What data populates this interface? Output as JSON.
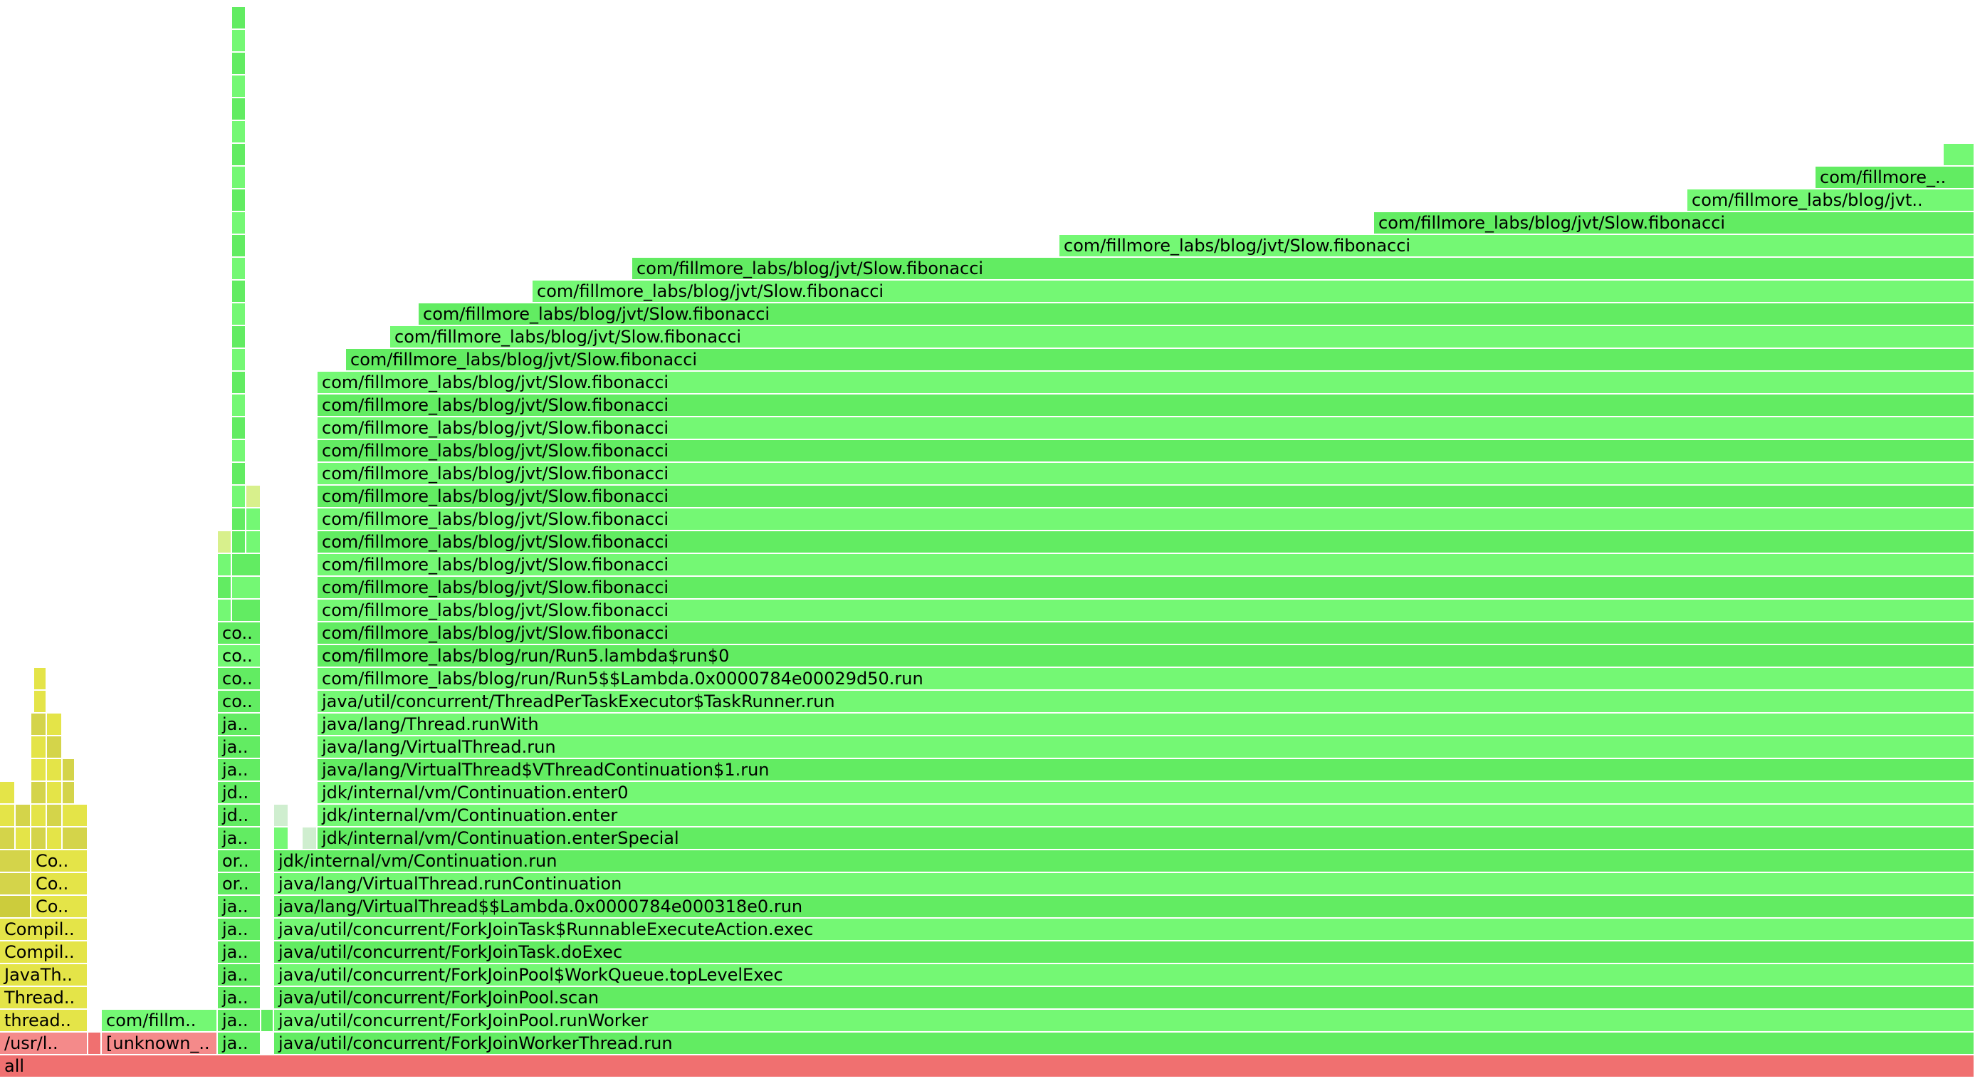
{
  "title": "Flame graph",
  "colors": {
    "red": "#f07070",
    "red_light": "#f48a8a",
    "green": "#62ec62",
    "green_light": "#74f874",
    "green_pale": "#cfeecf",
    "green_yellow": "#d8f08c",
    "yellow": "#e4e448",
    "yellow_dark": "#d4d44a",
    "yellow_olive": "#cccc3c"
  },
  "frames": [
    {
      "level": 0,
      "start": 0,
      "end": 2774,
      "text": "all",
      "color": "red"
    },
    {
      "level": 1,
      "start": 0,
      "end": 124,
      "text": "/usr/l..",
      "color": "red_light"
    },
    {
      "level": 1,
      "start": 124,
      "end": 143,
      "text": "",
      "color": "red"
    },
    {
      "level": 1,
      "start": 143,
      "end": 306,
      "text": "[unknown_..",
      "color": "red_light"
    },
    {
      "level": 1,
      "start": 306,
      "end": 367,
      "text": "ja..",
      "color": "green"
    },
    {
      "level": 1,
      "start": 385,
      "end": 2774,
      "text": "java/util/concurrent/ForkJoinWorkerThread.run",
      "color": "green"
    },
    {
      "level": 2,
      "start": 0,
      "end": 124,
      "text": "thread..",
      "color": "yellow"
    },
    {
      "level": 2,
      "start": 143,
      "end": 306,
      "text": "com/fillm..",
      "color": "green_light"
    },
    {
      "level": 2,
      "start": 306,
      "end": 367,
      "text": "ja..",
      "color": "green"
    },
    {
      "level": 2,
      "start": 367,
      "end": 385,
      "text": "",
      "color": "green"
    },
    {
      "level": 2,
      "start": 385,
      "end": 2774,
      "text": "java/util/concurrent/ForkJoinPool.runWorker",
      "color": "green_light"
    },
    {
      "level": 3,
      "start": 0,
      "end": 124,
      "text": "Thread..",
      "color": "yellow"
    },
    {
      "level": 3,
      "start": 306,
      "end": 367,
      "text": "ja..",
      "color": "green"
    },
    {
      "level": 3,
      "start": 385,
      "end": 2774,
      "text": "java/util/concurrent/ForkJoinPool.scan",
      "color": "green"
    },
    {
      "level": 4,
      "start": 0,
      "end": 124,
      "text": "JavaTh..",
      "color": "yellow"
    },
    {
      "level": 4,
      "start": 306,
      "end": 367,
      "text": "ja..",
      "color": "green"
    },
    {
      "level": 4,
      "start": 385,
      "end": 2774,
      "text": "java/util/concurrent/ForkJoinPool$WorkQueue.topLevelExec",
      "color": "green_light"
    },
    {
      "level": 5,
      "start": 0,
      "end": 124,
      "text": "Compil..",
      "color": "yellow"
    },
    {
      "level": 5,
      "start": 306,
      "end": 367,
      "text": "ja..",
      "color": "green"
    },
    {
      "level": 5,
      "start": 385,
      "end": 2774,
      "text": "java/util/concurrent/ForkJoinTask.doExec",
      "color": "green"
    },
    {
      "level": 6,
      "start": 0,
      "end": 124,
      "text": "Compil..",
      "color": "yellow"
    },
    {
      "level": 6,
      "start": 306,
      "end": 367,
      "text": "ja..",
      "color": "green"
    },
    {
      "level": 6,
      "start": 385,
      "end": 2774,
      "text": "java/util/concurrent/ForkJoinTask$RunnableExecuteAction.exec",
      "color": "green_light"
    },
    {
      "level": 7,
      "start": 0,
      "end": 44,
      "text": "",
      "color": "yellow_olive"
    },
    {
      "level": 7,
      "start": 44,
      "end": 124,
      "text": "Co..",
      "color": "yellow"
    },
    {
      "level": 7,
      "start": 306,
      "end": 367,
      "text": "ja..",
      "color": "green"
    },
    {
      "level": 7,
      "start": 385,
      "end": 2774,
      "text": "java/lang/VirtualThread$$Lambda.0x0000784e000318e0.run",
      "color": "green"
    },
    {
      "level": 8,
      "start": 0,
      "end": 44,
      "text": "",
      "color": "yellow_dark"
    },
    {
      "level": 8,
      "start": 44,
      "end": 124,
      "text": "Co..",
      "color": "yellow"
    },
    {
      "level": 8,
      "start": 306,
      "end": 367,
      "text": "or..",
      "color": "green"
    },
    {
      "level": 8,
      "start": 385,
      "end": 2774,
      "text": "java/lang/VirtualThread.runContinuation",
      "color": "green_light"
    },
    {
      "level": 9,
      "start": 0,
      "end": 44,
      "text": "",
      "color": "yellow_dark"
    },
    {
      "level": 9,
      "start": 44,
      "end": 124,
      "text": "Co..",
      "color": "yellow"
    },
    {
      "level": 9,
      "start": 306,
      "end": 367,
      "text": "or..",
      "color": "green"
    },
    {
      "level": 9,
      "start": 385,
      "end": 2774,
      "text": "jdk/internal/vm/Continuation.run",
      "color": "green"
    },
    {
      "level": 10,
      "start": 0,
      "end": 22,
      "text": "",
      "color": "yellow_dark"
    },
    {
      "level": 10,
      "start": 22,
      "end": 44,
      "text": "",
      "color": "yellow"
    },
    {
      "level": 10,
      "start": 44,
      "end": 66,
      "text": "",
      "color": "yellow_dark"
    },
    {
      "level": 10,
      "start": 66,
      "end": 88,
      "text": "",
      "color": "yellow"
    },
    {
      "level": 10,
      "start": 88,
      "end": 124,
      "text": "",
      "color": "yellow_dark"
    },
    {
      "level": 10,
      "start": 306,
      "end": 367,
      "text": "ja..",
      "color": "green"
    },
    {
      "level": 10,
      "start": 385,
      "end": 406,
      "text": "",
      "color": "green_light"
    },
    {
      "level": 10,
      "start": 425,
      "end": 446,
      "text": "",
      "color": "green_pale"
    },
    {
      "level": 10,
      "start": 446,
      "end": 2774,
      "text": "jdk/internal/vm/Continuation.enterSpecial",
      "color": "green"
    },
    {
      "level": 11,
      "start": 0,
      "end": 22,
      "text": "",
      "color": "yellow"
    },
    {
      "level": 11,
      "start": 22,
      "end": 44,
      "text": "",
      "color": "yellow_dark"
    },
    {
      "level": 11,
      "start": 44,
      "end": 66,
      "text": "",
      "color": "yellow"
    },
    {
      "level": 11,
      "start": 66,
      "end": 88,
      "text": "",
      "color": "yellow_dark"
    },
    {
      "level": 11,
      "start": 88,
      "end": 124,
      "text": "",
      "color": "yellow"
    },
    {
      "level": 11,
      "start": 306,
      "end": 367,
      "text": "jd..",
      "color": "green"
    },
    {
      "level": 11,
      "start": 385,
      "end": 406,
      "text": "",
      "color": "green_pale"
    },
    {
      "level": 11,
      "start": 446,
      "end": 2774,
      "text": "jdk/internal/vm/Continuation.enter",
      "color": "green_light"
    },
    {
      "level": 12,
      "start": 0,
      "end": 22,
      "text": "",
      "color": "yellow"
    },
    {
      "level": 12,
      "start": 44,
      "end": 66,
      "text": "",
      "color": "yellow_dark"
    },
    {
      "level": 12,
      "start": 66,
      "end": 88,
      "text": "",
      "color": "yellow"
    },
    {
      "level": 12,
      "start": 88,
      "end": 106,
      "text": "",
      "color": "yellow_dark"
    },
    {
      "level": 12,
      "start": 306,
      "end": 367,
      "text": "jd..",
      "color": "green"
    },
    {
      "level": 12,
      "start": 446,
      "end": 2774,
      "text": "jdk/internal/vm/Continuation.enter0",
      "color": "green_light"
    },
    {
      "level": 13,
      "start": 44,
      "end": 66,
      "text": "",
      "color": "yellow"
    },
    {
      "level": 13,
      "start": 66,
      "end": 88,
      "text": "",
      "color": "yellow"
    },
    {
      "level": 13,
      "start": 88,
      "end": 106,
      "text": "",
      "color": "yellow_dark"
    },
    {
      "level": 13,
      "start": 306,
      "end": 367,
      "text": "ja..",
      "color": "green"
    },
    {
      "level": 13,
      "start": 446,
      "end": 2774,
      "text": "java/lang/VirtualThread$VThreadContinuation$1.run",
      "color": "green"
    },
    {
      "level": 14,
      "start": 44,
      "end": 66,
      "text": "",
      "color": "yellow"
    },
    {
      "level": 14,
      "start": 66,
      "end": 88,
      "text": "",
      "color": "yellow_dark"
    },
    {
      "level": 14,
      "start": 306,
      "end": 367,
      "text": "ja..",
      "color": "green"
    },
    {
      "level": 14,
      "start": 446,
      "end": 2774,
      "text": "java/lang/VirtualThread.run",
      "color": "green_light"
    },
    {
      "level": 15,
      "start": 44,
      "end": 66,
      "text": "",
      "color": "yellow_dark"
    },
    {
      "level": 15,
      "start": 66,
      "end": 88,
      "text": "",
      "color": "yellow"
    },
    {
      "level": 15,
      "start": 306,
      "end": 367,
      "text": "ja..",
      "color": "green"
    },
    {
      "level": 15,
      "start": 446,
      "end": 2774,
      "text": "java/lang/Thread.runWith",
      "color": "green_light"
    },
    {
      "level": 16,
      "start": 48,
      "end": 66,
      "text": "",
      "color": "yellow"
    },
    {
      "level": 16,
      "start": 306,
      "end": 367,
      "text": "co..",
      "color": "green"
    },
    {
      "level": 16,
      "start": 446,
      "end": 2774,
      "text": "java/util/concurrent/ThreadPerTaskExecutor$TaskRunner.run",
      "color": "green_light"
    },
    {
      "level": 17,
      "start": 48,
      "end": 66,
      "text": "",
      "color": "yellow"
    },
    {
      "level": 17,
      "start": 306,
      "end": 367,
      "text": "co..",
      "color": "green"
    },
    {
      "level": 17,
      "start": 446,
      "end": 2774,
      "text": "com/fillmore_labs/blog/run/Run5$$Lambda.0x0000784e00029d50.run",
      "color": "green_light"
    },
    {
      "level": 18,
      "start": 306,
      "end": 367,
      "text": "co..",
      "color": "green_light"
    },
    {
      "level": 18,
      "start": 446,
      "end": 2774,
      "text": "com/fillmore_labs/blog/run/Run5.lambda$run$0",
      "color": "green"
    },
    {
      "level": 19,
      "start": 306,
      "end": 367,
      "text": "co..",
      "color": "green"
    },
    {
      "level": 19,
      "start": 446,
      "end": 2774,
      "text": "com/fillmore_labs/blog/jvt/Slow.fibonacci",
      "color": "green"
    },
    {
      "level": 20,
      "start": 306,
      "end": 326,
      "text": "",
      "color": "green_light"
    },
    {
      "level": 20,
      "start": 326,
      "end": 367,
      "text": "",
      "color": "green"
    },
    {
      "level": 20,
      "start": 446,
      "end": 2774,
      "text": "com/fillmore_labs/blog/jvt/Slow.fibonacci",
      "color": "green_light"
    },
    {
      "level": 21,
      "start": 306,
      "end": 326,
      "text": "",
      "color": "green"
    },
    {
      "level": 21,
      "start": 326,
      "end": 367,
      "text": "",
      "color": "green_light"
    },
    {
      "level": 21,
      "start": 446,
      "end": 2774,
      "text": "com/fillmore_labs/blog/jvt/Slow.fibonacci",
      "color": "green"
    },
    {
      "level": 22,
      "start": 306,
      "end": 326,
      "text": "",
      "color": "green_light"
    },
    {
      "level": 22,
      "start": 326,
      "end": 367,
      "text": "",
      "color": "green"
    },
    {
      "level": 22,
      "start": 446,
      "end": 2774,
      "text": "com/fillmore_labs/blog/jvt/Slow.fibonacci",
      "color": "green_light"
    },
    {
      "level": 23,
      "start": 306,
      "end": 326,
      "text": "",
      "color": "green_yellow"
    },
    {
      "level": 23,
      "start": 326,
      "end": 346,
      "text": "",
      "color": "green"
    },
    {
      "level": 23,
      "start": 346,
      "end": 367,
      "text": "",
      "color": "green_light"
    },
    {
      "level": 23,
      "start": 446,
      "end": 2774,
      "text": "com/fillmore_labs/blog/jvt/Slow.fibonacci",
      "color": "green"
    },
    {
      "level": 24,
      "start": 326,
      "end": 346,
      "text": "",
      "color": "green"
    },
    {
      "level": 24,
      "start": 346,
      "end": 367,
      "text": "",
      "color": "green_light"
    },
    {
      "level": 24,
      "start": 446,
      "end": 2774,
      "text": "com/fillmore_labs/blog/jvt/Slow.fibonacci",
      "color": "green_light"
    },
    {
      "level": 25,
      "start": 326,
      "end": 346,
      "text": "",
      "color": "green_light"
    },
    {
      "level": 25,
      "start": 346,
      "end": 367,
      "text": "",
      "color": "green_yellow"
    },
    {
      "level": 25,
      "start": 446,
      "end": 2774,
      "text": "com/fillmore_labs/blog/jvt/Slow.fibonacci",
      "color": "green"
    },
    {
      "level": 26,
      "start": 326,
      "end": 346,
      "text": "",
      "color": "green"
    },
    {
      "level": 26,
      "start": 446,
      "end": 2774,
      "text": "com/fillmore_labs/blog/jvt/Slow.fibonacci",
      "color": "green_light"
    },
    {
      "level": 27,
      "start": 326,
      "end": 346,
      "text": "",
      "color": "green_light"
    },
    {
      "level": 27,
      "start": 446,
      "end": 2774,
      "text": "com/fillmore_labs/blog/jvt/Slow.fibonacci",
      "color": "green"
    },
    {
      "level": 28,
      "start": 326,
      "end": 346,
      "text": "",
      "color": "green"
    },
    {
      "level": 28,
      "start": 446,
      "end": 2774,
      "text": "com/fillmore_labs/blog/jvt/Slow.fibonacci",
      "color": "green_light"
    },
    {
      "level": 29,
      "start": 326,
      "end": 346,
      "text": "",
      "color": "green_light"
    },
    {
      "level": 29,
      "start": 446,
      "end": 2774,
      "text": "com/fillmore_labs/blog/jvt/Slow.fibonacci",
      "color": "green"
    },
    {
      "level": 30,
      "start": 326,
      "end": 346,
      "text": "",
      "color": "green"
    },
    {
      "level": 30,
      "start": 446,
      "end": 2774,
      "text": "com/fillmore_labs/blog/jvt/Slow.fibonacci",
      "color": "green_light"
    },
    {
      "level": 31,
      "start": 326,
      "end": 346,
      "text": "",
      "color": "green_light"
    },
    {
      "level": 31,
      "start": 486,
      "end": 2774,
      "text": "com/fillmore_labs/blog/jvt/Slow.fibonacci",
      "color": "green"
    },
    {
      "level": 32,
      "start": 326,
      "end": 346,
      "text": "",
      "color": "green"
    },
    {
      "level": 32,
      "start": 548,
      "end": 2774,
      "text": "com/fillmore_labs/blog/jvt/Slow.fibonacci",
      "color": "green_light"
    },
    {
      "level": 33,
      "start": 326,
      "end": 346,
      "text": "",
      "color": "green_light"
    },
    {
      "level": 33,
      "start": 588,
      "end": 2774,
      "text": "com/fillmore_labs/blog/jvt/Slow.fibonacci",
      "color": "green"
    },
    {
      "level": 34,
      "start": 326,
      "end": 346,
      "text": "",
      "color": "green"
    },
    {
      "level": 34,
      "start": 748,
      "end": 2774,
      "text": "com/fillmore_labs/blog/jvt/Slow.fibonacci",
      "color": "green_light"
    },
    {
      "level": 35,
      "start": 326,
      "end": 346,
      "text": "",
      "color": "green_light"
    },
    {
      "level": 35,
      "start": 888,
      "end": 2774,
      "text": "com/fillmore_labs/blog/jvt/Slow.fibonacci",
      "color": "green"
    },
    {
      "level": 36,
      "start": 326,
      "end": 346,
      "text": "",
      "color": "green"
    },
    {
      "level": 36,
      "start": 1488,
      "end": 2774,
      "text": "com/fillmore_labs/blog/jvt/Slow.fibonacci",
      "color": "green_light"
    },
    {
      "level": 37,
      "start": 326,
      "end": 346,
      "text": "",
      "color": "green_light"
    },
    {
      "level": 37,
      "start": 1930,
      "end": 2774,
      "text": "com/fillmore_labs/blog/jvt/Slow.fibonacci",
      "color": "green"
    },
    {
      "level": 38,
      "start": 326,
      "end": 346,
      "text": "",
      "color": "green"
    },
    {
      "level": 38,
      "start": 2370,
      "end": 2774,
      "text": "com/fillmore_labs/blog/jvt..",
      "color": "green_light"
    },
    {
      "level": 39,
      "start": 326,
      "end": 346,
      "text": "",
      "color": "green_light"
    },
    {
      "level": 39,
      "start": 2550,
      "end": 2774,
      "text": "com/fillmore_..",
      "color": "green"
    },
    {
      "level": 40,
      "start": 326,
      "end": 346,
      "text": "",
      "color": "green"
    },
    {
      "level": 40,
      "start": 2730,
      "end": 2774,
      "text": "",
      "color": "green_light"
    },
    {
      "level": 41,
      "start": 326,
      "end": 346,
      "text": "",
      "color": "green_light"
    },
    {
      "level": 42,
      "start": 326,
      "end": 346,
      "text": "",
      "color": "green"
    },
    {
      "level": 43,
      "start": 326,
      "end": 346,
      "text": "",
      "color": "green_light"
    },
    {
      "level": 44,
      "start": 326,
      "end": 346,
      "text": "",
      "color": "green"
    },
    {
      "level": 45,
      "start": 326,
      "end": 346,
      "text": "",
      "color": "green_light"
    },
    {
      "level": 46,
      "start": 326,
      "end": 346,
      "text": "",
      "color": "green"
    }
  ]
}
